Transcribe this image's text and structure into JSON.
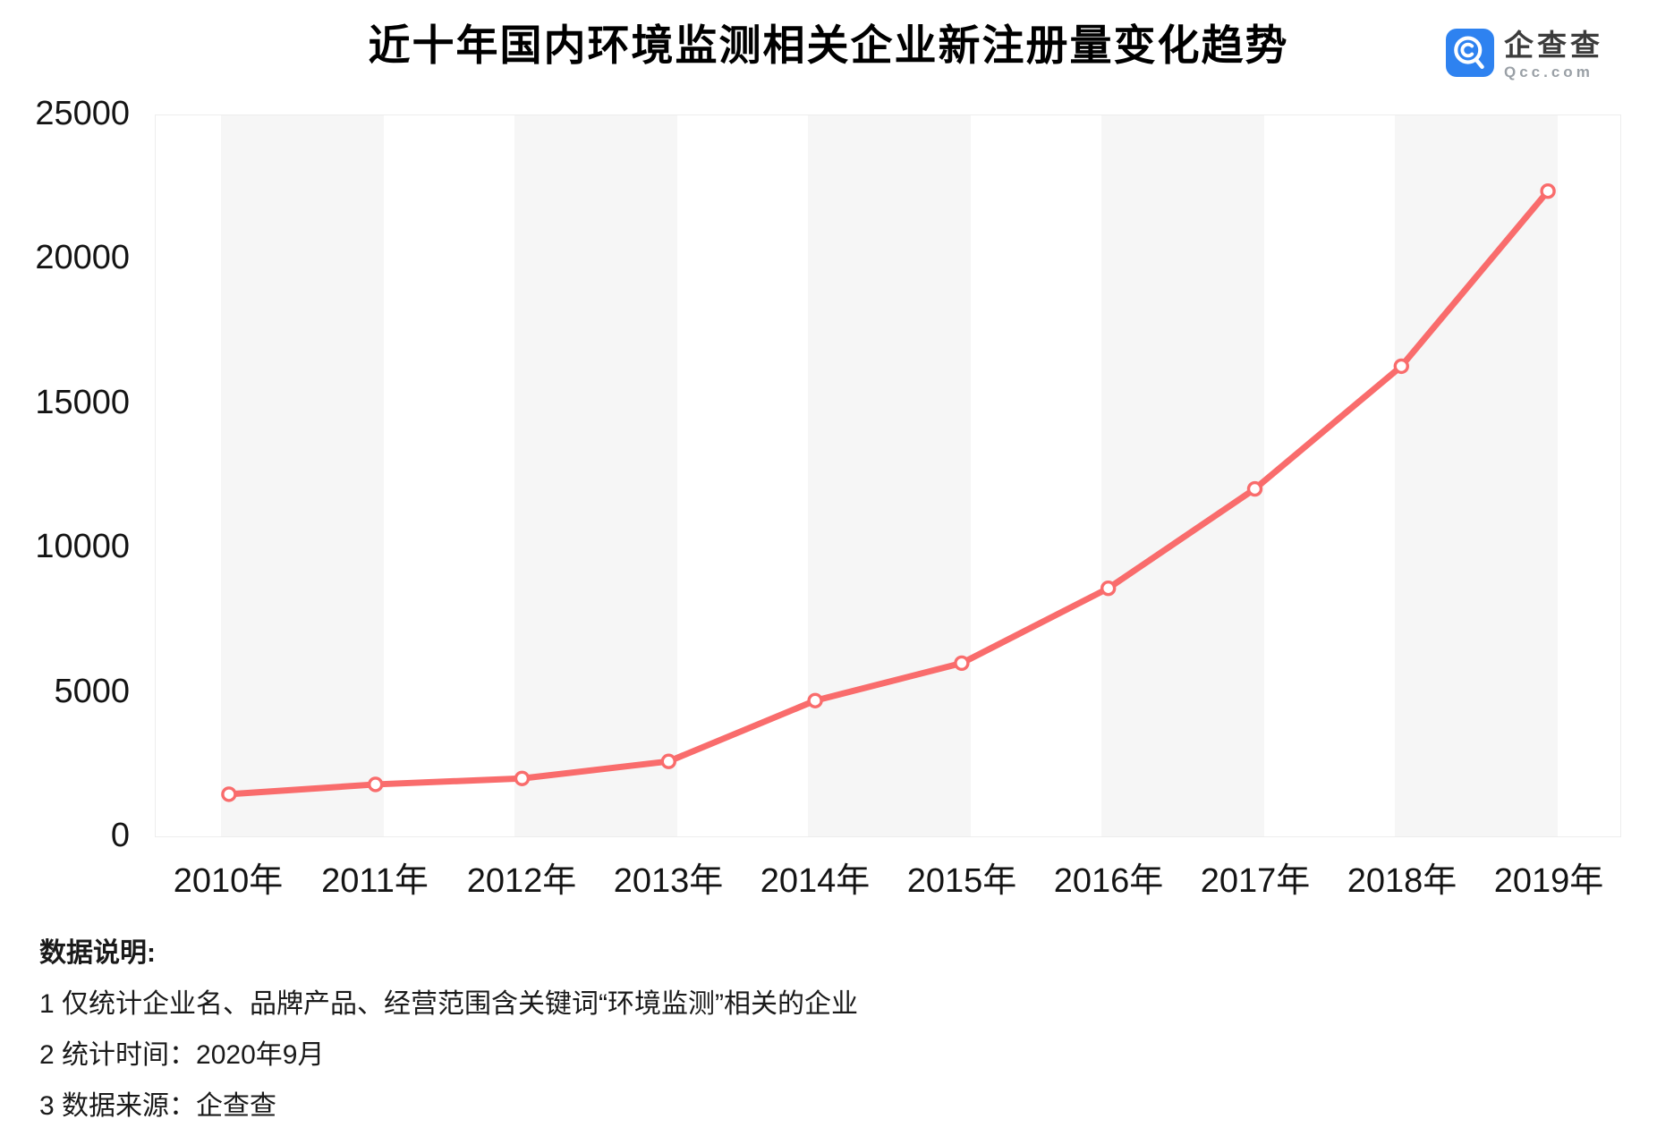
{
  "header": {
    "title": "近十年国内环境监测相关企业新注册量变化趋势",
    "logo": {
      "name": "企查查",
      "domain": "Qcc.com",
      "brand_blue": "#2E82F0"
    }
  },
  "chart_data": {
    "type": "line",
    "title": "近十年国内环境监测相关企业新注册量变化趋势",
    "categories": [
      "2010年",
      "2011年",
      "2012年",
      "2013年",
      "2014年",
      "2015年",
      "2016年",
      "2017年",
      "2018年",
      "2019年"
    ],
    "values": [
      1400,
      1740,
      1950,
      2540,
      4650,
      5950,
      8550,
      12000,
      16260,
      22340
    ],
    "xlabel": "",
    "ylabel": "",
    "ylim": [
      0,
      25000
    ],
    "yticks": [
      0,
      5000,
      10000,
      15000,
      20000,
      25000
    ],
    "legend": "none",
    "grid": "alternating-vertical-bands",
    "line_color": "#F96C6C",
    "marker": "open-circle",
    "marker_fill": "#FFFFFF",
    "band_color": "#F6F6F6",
    "plot_border_color": "#EDEDED"
  },
  "notes": {
    "heading": "数据说明:",
    "items": [
      "1 仅统计企业名、品牌产品、经营范围含关键词“环境监测”相关的企业",
      "2 统计时间：2020年9月",
      "3 数据来源：企查查"
    ]
  }
}
